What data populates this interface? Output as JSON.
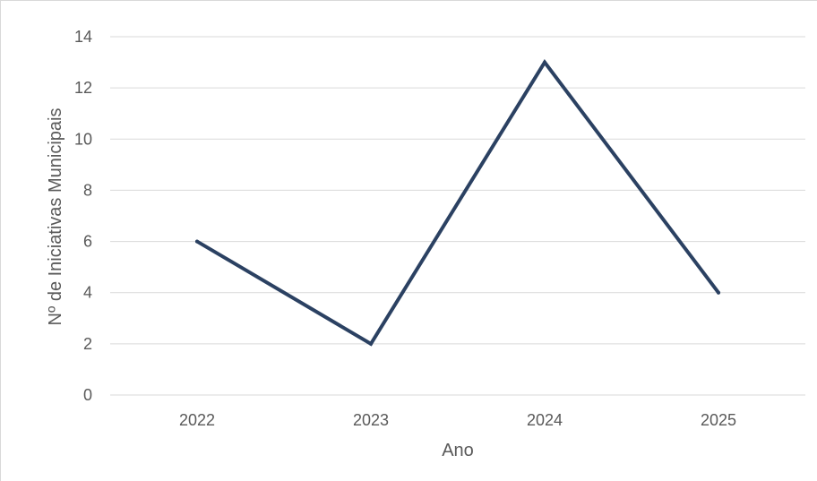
{
  "chart_data": {
    "type": "line",
    "x": [
      "2022",
      "2023",
      "2024",
      "2025"
    ],
    "series": [
      {
        "values": [
          6,
          2,
          13,
          4
        ]
      }
    ],
    "xlabel": "Ano",
    "ylabel": "Nº de Iniciativas Municipais",
    "ylim": [
      0,
      14
    ],
    "yticks": [
      0,
      2,
      4,
      6,
      8,
      10,
      12,
      14
    ],
    "grid": "horizontal",
    "legend": "none",
    "colors": {
      "line": "#2b4162",
      "grid": "#d9d9d9",
      "text": "#595959"
    }
  }
}
